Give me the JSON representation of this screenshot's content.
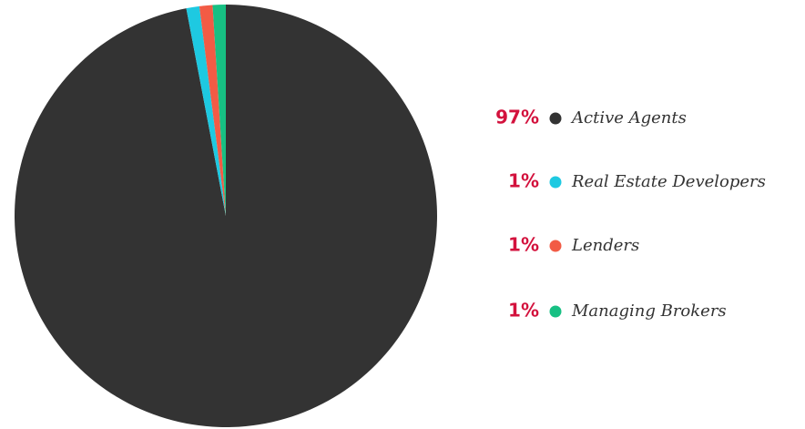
{
  "chart_data": {
    "type": "pie",
    "categories": [
      "Active Agents",
      "Real Estate Developers",
      "Lenders",
      "Managing Brokers"
    ],
    "values": [
      97,
      1,
      1,
      1
    ],
    "value_labels": [
      "97%",
      "1%",
      "1%",
      "1%"
    ],
    "colors": [
      "#333333",
      "#1ec9e1",
      "#f25b45",
      "#17c083"
    ],
    "legend": "right"
  }
}
